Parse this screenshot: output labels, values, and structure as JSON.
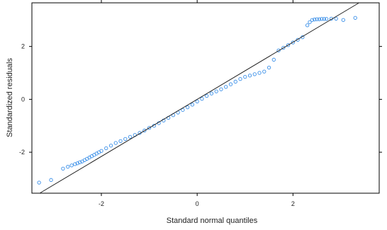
{
  "chart_data": {
    "type": "scatter",
    "title": "",
    "xlabel": "Standard normal quantiles",
    "ylabel": "Standardized residuals",
    "xlim": [
      -3.45,
      3.8
    ],
    "ylim": [
      -3.55,
      3.65
    ],
    "x_ticks": [
      -2,
      0,
      2
    ],
    "x_tick_labels": [
      "-2",
      "0",
      "2"
    ],
    "y_ticks": [
      -2,
      0,
      2
    ],
    "y_tick_labels": [
      "-2",
      "0",
      "2"
    ],
    "grid": false,
    "legend": "none",
    "point_color": "#3a8fe8",
    "line_color": "#222222",
    "reference_line": {
      "intercept": 0,
      "slope": 1.08
    },
    "points": {
      "x": [
        -3.3,
        -3.05,
        -2.8,
        -2.7,
        -2.62,
        -2.55,
        -2.5,
        -2.45,
        -2.4,
        -2.35,
        -2.3,
        -2.25,
        -2.2,
        -2.15,
        -2.1,
        -2.05,
        -2.0,
        -1.9,
        -1.8,
        -1.7,
        -1.6,
        -1.5,
        -1.4,
        -1.3,
        -1.2,
        -1.1,
        -1.0,
        -0.9,
        -0.8,
        -0.7,
        -0.6,
        -0.5,
        -0.4,
        -0.3,
        -0.2,
        -0.1,
        0.0,
        0.1,
        0.2,
        0.3,
        0.4,
        0.5,
        0.6,
        0.7,
        0.8,
        0.9,
        1.0,
        1.1,
        1.2,
        1.3,
        1.4,
        1.5,
        1.6,
        1.7,
        1.8,
        1.9,
        2.0,
        2.1,
        2.2,
        2.3,
        2.35,
        2.4,
        2.45,
        2.5,
        2.55,
        2.6,
        2.65,
        2.7,
        2.8,
        2.9,
        3.05,
        3.3
      ],
      "y": [
        -3.15,
        -3.05,
        -2.62,
        -2.55,
        -2.5,
        -2.45,
        -2.42,
        -2.38,
        -2.35,
        -2.3,
        -2.25,
        -2.2,
        -2.15,
        -2.1,
        -2.05,
        -2.0,
        -1.95,
        -1.85,
        -1.75,
        -1.65,
        -1.58,
        -1.5,
        -1.42,
        -1.35,
        -1.27,
        -1.18,
        -1.08,
        -1.0,
        -0.9,
        -0.8,
        -0.7,
        -0.6,
        -0.5,
        -0.4,
        -0.3,
        -0.2,
        -0.08,
        0.02,
        0.13,
        0.22,
        0.3,
        0.38,
        0.47,
        0.57,
        0.67,
        0.77,
        0.85,
        0.9,
        0.95,
        1.0,
        1.05,
        1.2,
        1.5,
        1.85,
        1.95,
        2.05,
        2.15,
        2.25,
        2.35,
        2.8,
        2.92,
        3.0,
        3.02,
        3.03,
        3.03,
        3.04,
        3.04,
        3.04,
        3.05,
        3.05,
        3.0,
        3.08
      ]
    }
  }
}
